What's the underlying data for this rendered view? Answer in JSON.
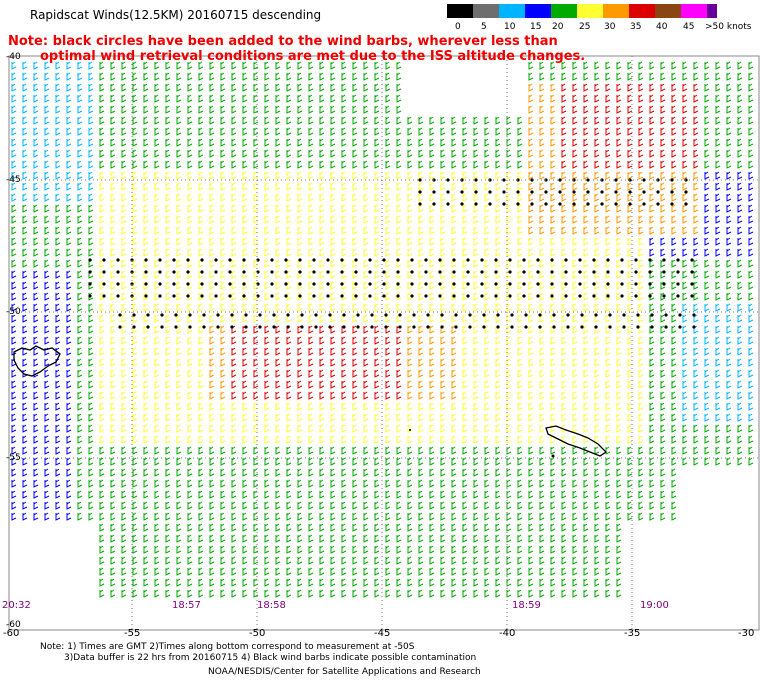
{
  "header": {
    "title": "Rapidscat Winds(12.5KM) 20160715 descending",
    "note_line1": "Note: black circles have been added to the wind barbs, wherever less than",
    "note_line2": "optimal wind retrieval conditions are met due to the ISS altitude changes."
  },
  "colorbar": {
    "labels": [
      "0",
      "5",
      "10",
      "15",
      "20",
      "25",
      "30",
      "35",
      "40",
      "45",
      ">50 knots"
    ],
    "colors": [
      "#000000",
      "#6e6e6e",
      "#00b4ff",
      "#0000ff",
      "#00aa00",
      "#ffff33",
      "#ff9900",
      "#dd0000",
      "#8b4513",
      "#ff00ff",
      "#660099"
    ]
  },
  "axes": {
    "lat_labels": [
      "-40",
      "-45",
      "-50",
      "-55",
      "-60"
    ],
    "lon_labels": [
      "-60",
      "-55",
      "-50",
      "-45",
      "-40",
      "-35",
      "-30"
    ]
  },
  "times": [
    "20:32",
    "18:57",
    "18:58",
    "18:59",
    "19:00"
  ],
  "footer": {
    "line1": "Note: 1) Times are GMT 2)Times along bottom correspond to measurement at -50S",
    "line2": "3)Data buffer is 22 hrs from 20160715 4) Black wind barbs indicate possible contamination",
    "credit": "NOAA/NESDIS/Center for Satellite Applications and Research"
  },
  "legend_colors": {
    "calm": "#00b4ff",
    "light": "#0000ff",
    "moderate": "#00aa00",
    "fresh": "#ffff33",
    "strong": "#ff9900",
    "gale": "#dd0000",
    "land": "#000000"
  }
}
